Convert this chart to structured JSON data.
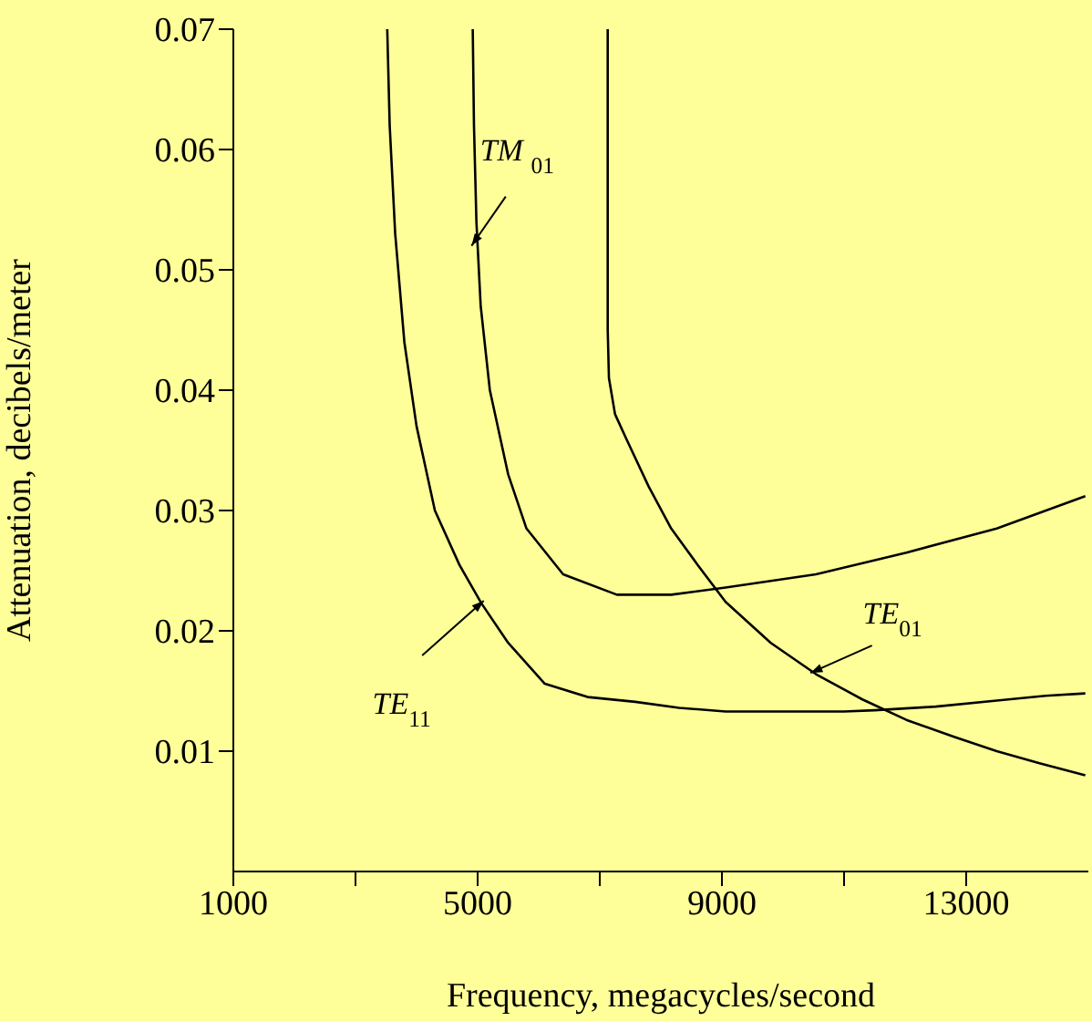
{
  "chart_data": {
    "type": "line",
    "xlabel": "Frequency, megacycles/second",
    "ylabel": "Attenuation, decibels/meter",
    "xlim": [
      1000,
      15000
    ],
    "xticks": [
      1000,
      {
        "value": 3000,
        "label": null
      },
      5000,
      {
        "value": 7000,
        "label": null
      },
      9000,
      {
        "value": 11000,
        "label": null
      },
      13000
    ],
    "ylim": [
      0,
      0.07
    ],
    "yticks": [
      0.01,
      0.02,
      0.03,
      0.04,
      0.05,
      0.06,
      0.07
    ],
    "marker": "none",
    "line_style": "solid",
    "series": [
      {
        "color": "#000000",
        "x": [
          3520,
          3560,
          3650,
          3800,
          4000,
          4300,
          4700,
          5060,
          5500,
          6100,
          6800,
          7580,
          8300,
          9060,
          10000,
          11000,
          11500,
          12500,
          13500,
          14300,
          14950
        ],
        "values": [
          0.07,
          0.062,
          0.053,
          0.044,
          0.037,
          0.03,
          0.0255,
          0.0223,
          0.019,
          0.0156,
          0.0145,
          0.0141,
          0.0136,
          0.0133,
          0.0133,
          0.0133,
          0.0134,
          0.0137,
          0.0142,
          0.0146,
          0.0148
        ]
      },
      {
        "color": "#000000",
        "x": [
          4920,
          4940,
          4980,
          5050,
          5200,
          5500,
          5800,
          6400,
          7280,
          8170,
          9060,
          10540,
          12020,
          13500,
          14950
        ],
        "values": [
          0.07,
          0.062,
          0.054,
          0.047,
          0.04,
          0.033,
          0.0285,
          0.0247,
          0.023,
          0.023,
          0.0236,
          0.0247,
          0.0265,
          0.0285,
          0.0312
        ]
      },
      {
        "color": "#000000",
        "x": [
          7130,
          7130,
          7150,
          7250,
          7430,
          7800,
          8170,
          8600,
          9060,
          9800,
          10540,
          11300,
          12020,
          12800,
          13500,
          14200,
          14950
        ],
        "values": [
          0.07,
          0.045,
          0.041,
          0.038,
          0.036,
          0.032,
          0.0285,
          0.0255,
          0.0224,
          0.019,
          0.0164,
          0.0143,
          0.0126,
          0.0112,
          0.01,
          0.009,
          0.008
        ]
      }
    ],
    "annotations": [
      {
        "text": "TM $_{01}$",
        "x": 4900,
        "y": 0.052
      },
      {
        "text": "TE$_{11}$",
        "x": 5100,
        "y": 0.0225
      },
      {
        "text": "TE$_{01}$",
        "x": 10450,
        "y": 0.0165
      }
    ]
  }
}
